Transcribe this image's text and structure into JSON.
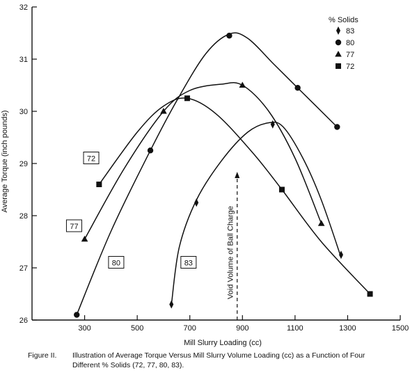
{
  "chart_data": {
    "type": "line",
    "title": "",
    "xlabel": "Mill Slurry Loading (cc)",
    "ylabel": "Average Torque (inch pounds)",
    "xlim": [
      100,
      1500
    ],
    "ylim": [
      26,
      32
    ],
    "xticks": [
      "300",
      "500",
      "700",
      "900",
      "1100",
      "1300",
      "1500"
    ],
    "yticks": [
      "26",
      "27",
      "28",
      "29",
      "30",
      "31",
      "32"
    ],
    "grid": false,
    "legend": {
      "title": "% Solids",
      "placement": "top-right",
      "entries": [
        "83",
        "80",
        "77",
        "72"
      ]
    },
    "series": [
      {
        "name": "83",
        "marker": "diamond",
        "points": [
          [
            630,
            26.3
          ],
          [
            725,
            28.25
          ],
          [
            1015,
            29.75
          ],
          [
            1275,
            27.25
          ]
        ],
        "curve": [
          [
            630,
            26.3
          ],
          [
            660,
            27.4
          ],
          [
            725,
            28.3
          ],
          [
            820,
            29.05
          ],
          [
            920,
            29.6
          ],
          [
            1000,
            29.78
          ],
          [
            1055,
            29.7
          ],
          [
            1130,
            29.1
          ],
          [
            1200,
            28.3
          ],
          [
            1275,
            27.2
          ]
        ]
      },
      {
        "name": "80",
        "marker": "circle",
        "points": [
          [
            270,
            26.1
          ],
          [
            550,
            29.25
          ],
          [
            850,
            31.45
          ],
          [
            1110,
            30.45
          ],
          [
            1260,
            29.7
          ]
        ],
        "curve": [
          [
            270,
            26.1
          ],
          [
            400,
            27.7
          ],
          [
            550,
            29.25
          ],
          [
            650,
            30.2
          ],
          [
            760,
            31.1
          ],
          [
            850,
            31.48
          ],
          [
            920,
            31.4
          ],
          [
            1020,
            30.9
          ],
          [
            1110,
            30.45
          ],
          [
            1260,
            29.7
          ]
        ]
      },
      {
        "name": "77",
        "marker": "triangle",
        "points": [
          [
            300,
            27.55
          ],
          [
            600,
            30.0
          ],
          [
            900,
            30.5
          ],
          [
            1200,
            27.85
          ]
        ],
        "curve": [
          [
            300,
            27.55
          ],
          [
            450,
            28.9
          ],
          [
            600,
            30.0
          ],
          [
            700,
            30.4
          ],
          [
            820,
            30.52
          ],
          [
            900,
            30.5
          ],
          [
            1000,
            30.0
          ],
          [
            1100,
            29.1
          ],
          [
            1200,
            27.85
          ]
        ]
      },
      {
        "name": "72",
        "marker": "square",
        "points": [
          [
            355,
            28.6
          ],
          [
            690,
            30.25
          ],
          [
            1050,
            28.5
          ],
          [
            1385,
            26.5
          ]
        ],
        "curve": [
          [
            355,
            28.6
          ],
          [
            500,
            29.6
          ],
          [
            600,
            30.1
          ],
          [
            690,
            30.25
          ],
          [
            800,
            29.95
          ],
          [
            940,
            29.2
          ],
          [
            1050,
            28.5
          ],
          [
            1200,
            27.5
          ],
          [
            1385,
            26.5
          ]
        ]
      }
    ],
    "boxed_labels": [
      {
        "text": "72",
        "x": 325,
        "y": 29.1
      },
      {
        "text": "77",
        "x": 260,
        "y": 27.8
      },
      {
        "text": "80",
        "x": 420,
        "y": 27.1
      },
      {
        "text": "83",
        "x": 695,
        "y": 27.1
      }
    ],
    "annotation": {
      "text": "Void Volume of Ball Charge",
      "x": 880,
      "y_from": 26.0,
      "y_to": 28.8
    },
    "caption": {
      "label": "Figure II.",
      "line1": "Illustration of Average Torque Versus Mill Slurry Volume Loading (cc) as a Function of Four",
      "line2": "Different % Solids (72, 77, 80, 83)."
    }
  }
}
